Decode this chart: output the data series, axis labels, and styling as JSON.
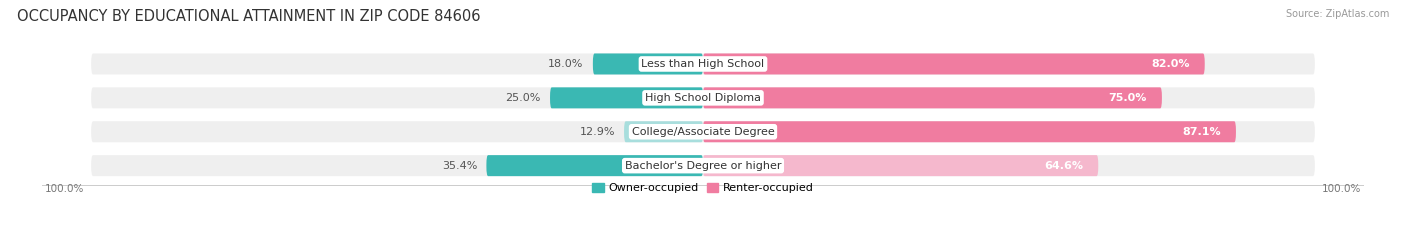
{
  "title": "OCCUPANCY BY EDUCATIONAL ATTAINMENT IN ZIP CODE 84606",
  "source": "Source: ZipAtlas.com",
  "categories": [
    "Less than High School",
    "High School Diploma",
    "College/Associate Degree",
    "Bachelor's Degree or higher"
  ],
  "owner_pct": [
    18.0,
    25.0,
    12.9,
    35.4
  ],
  "renter_pct": [
    82.0,
    75.0,
    87.1,
    64.6
  ],
  "owner_color": "#3ab8b3",
  "renter_color": "#f07ca0",
  "renter_color_light": "#f5b8cd",
  "owner_color_light": "#a8dedd",
  "bar_bg_color": "#efefef",
  "title_fontsize": 10.5,
  "cat_label_fontsize": 8,
  "pct_label_fontsize": 8,
  "tick_fontsize": 7.5,
  "legend_fontsize": 8,
  "source_fontsize": 7,
  "axis_label_left": "100.0%",
  "axis_label_right": "100.0%"
}
